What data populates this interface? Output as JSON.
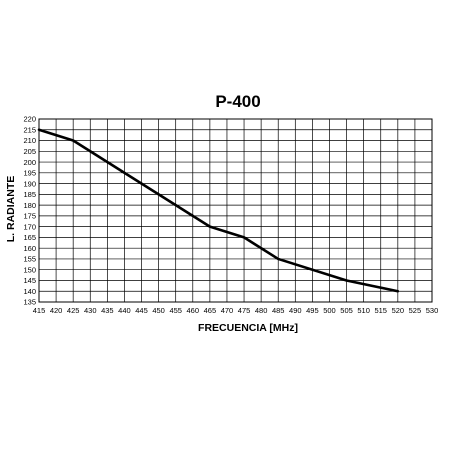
{
  "chart_data": {
    "type": "line",
    "title": "P-400",
    "xlabel": "FRECUENCIA [MHz]",
    "ylabel": "L. RADIANTE",
    "xlim": [
      415,
      530
    ],
    "ylim": [
      135,
      220
    ],
    "x_ticks": [
      415,
      420,
      425,
      430,
      435,
      440,
      445,
      450,
      455,
      460,
      465,
      470,
      475,
      480,
      485,
      490,
      495,
      500,
      505,
      510,
      515,
      520,
      525,
      530
    ],
    "y_ticks": [
      220,
      215,
      210,
      205,
      200,
      195,
      190,
      185,
      180,
      175,
      170,
      165,
      160,
      155,
      150,
      145,
      140,
      135
    ],
    "grid": true,
    "series": [
      {
        "x": [
          415,
          425,
          465,
          475,
          485,
          505,
          520
        ],
        "values": [
          215,
          210,
          170,
          165,
          155,
          145,
          140
        ]
      }
    ]
  }
}
